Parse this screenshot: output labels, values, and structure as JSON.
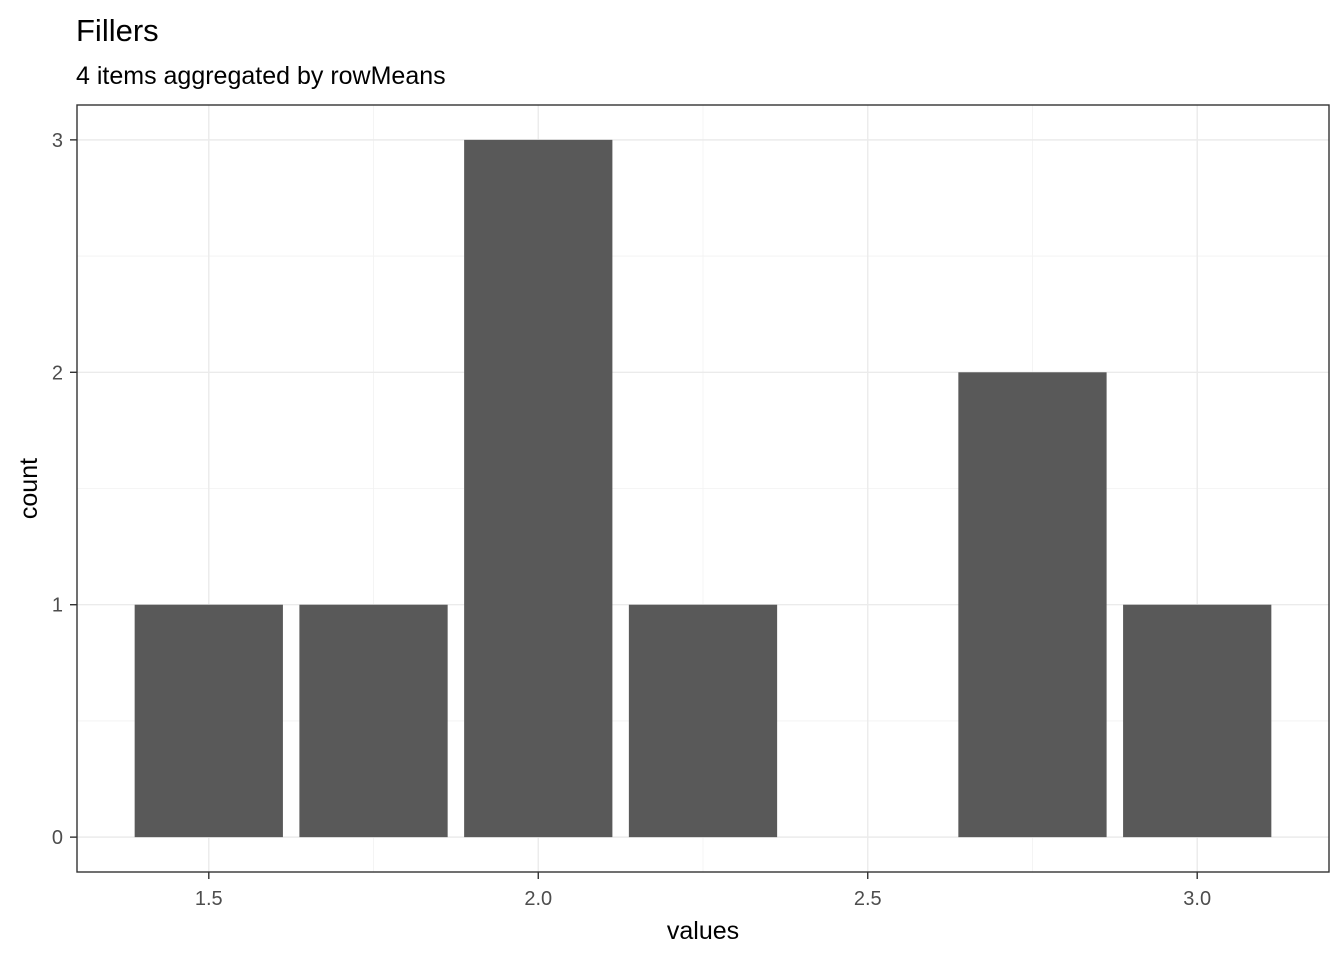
{
  "chart_data": {
    "type": "bar",
    "title": "Fillers",
    "subtitle": "4 items aggregated by rowMeans",
    "xlabel": "values",
    "ylabel": "count",
    "xlim": [
      1.3,
      3.2
    ],
    "ylim": [
      -0.15,
      3.15
    ],
    "x_ticks": [
      1.5,
      2.0,
      2.5,
      3.0
    ],
    "x_tick_labels": [
      "1.5",
      "2.0",
      "2.5",
      "3.0"
    ],
    "y_ticks": [
      0,
      1,
      2,
      3
    ],
    "y_tick_labels": [
      "0",
      "1",
      "2",
      "3"
    ],
    "bin_width": 0.25,
    "bar_fill_fraction": 0.9,
    "bars": [
      {
        "x": 1.5,
        "count": 1
      },
      {
        "x": 1.75,
        "count": 1
      },
      {
        "x": 2.0,
        "count": 3
      },
      {
        "x": 2.25,
        "count": 1
      },
      {
        "x": 2.5,
        "count": 0
      },
      {
        "x": 2.75,
        "count": 2
      },
      {
        "x": 3.0,
        "count": 1
      }
    ],
    "grid": true,
    "bar_color": "#595959",
    "background": "#ffffff"
  }
}
